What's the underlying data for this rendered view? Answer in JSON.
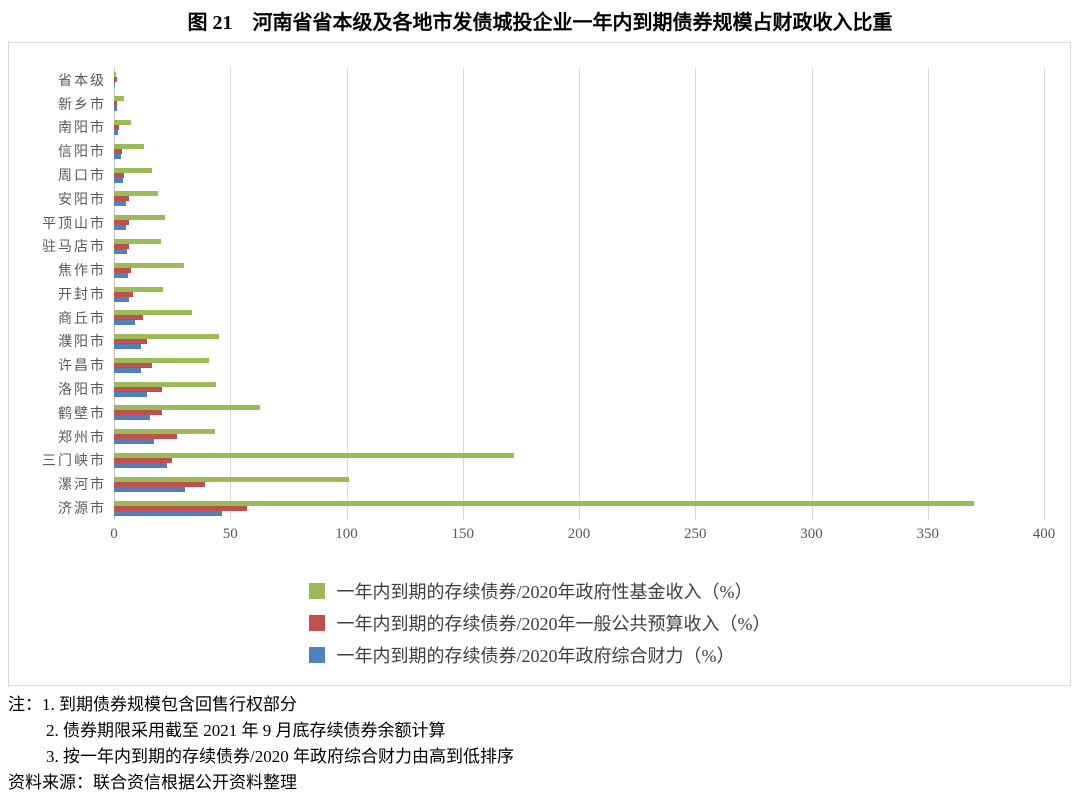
{
  "title": "图 21　河南省省本级及各地市发债城投企业一年内到期债券规模占财政收入比重",
  "chart_data": {
    "type": "bar",
    "orientation": "horizontal",
    "title": "图 21　河南省省本级及各地市发债城投企业一年内到期债券规模占财政收入比重",
    "categories": [
      "省本级",
      "新乡市",
      "南阳市",
      "信阳市",
      "周口市",
      "安阳市",
      "平顶山市",
      "驻马店市",
      "焦作市",
      "开封市",
      "商丘市",
      "濮阳市",
      "许昌市",
      "洛阳市",
      "鹤壁市",
      "郑州市",
      "三门峡市",
      "漯河市",
      "济源市"
    ],
    "series": [
      {
        "name": "一年内到期的存续债券/2020年政府性基金收入（%）",
        "color": "#9BBB59",
        "values": [
          1,
          4.5,
          7.5,
          13,
          16.5,
          19,
          22,
          20,
          30,
          21,
          33.5,
          45,
          41,
          44,
          63,
          43.5,
          172,
          101,
          370
        ]
      },
      {
        "name": "一年内到期的存续债券/2020年一般公共预算收入（%）",
        "color": "#C0504D",
        "values": [
          1.5,
          1.5,
          2.2,
          3.5,
          4.3,
          6.4,
          6.6,
          6.4,
          7.1,
          8.3,
          12.5,
          14,
          16.5,
          20.5,
          20.5,
          27,
          25,
          39,
          57
        ]
      },
      {
        "name": "一年内到期的存续债券/2020年政府综合财力（%）",
        "color": "#4F81BD",
        "values": [
          0.5,
          1.2,
          1.8,
          3,
          4,
          5,
          5.3,
          5.7,
          6.1,
          6.5,
          9,
          11.4,
          11.5,
          14,
          15.5,
          17,
          23,
          30.5,
          46.5
        ]
      }
    ],
    "xlim": [
      0,
      400
    ],
    "xticks": [
      0,
      50,
      100,
      150,
      200,
      250,
      300,
      350,
      400
    ],
    "grid": true,
    "legend_position": "bottom"
  },
  "notes": {
    "line1": "注：1. 到期债券规模包含回售行权部分",
    "line2": "2. 债券期限采用截至 2021 年 9 月底存续债券余额计算",
    "line3": "3. 按一年内到期的存续债券/2020 年政府综合财力由高到低排序",
    "source": "资料来源：联合资信根据公开资料整理"
  }
}
